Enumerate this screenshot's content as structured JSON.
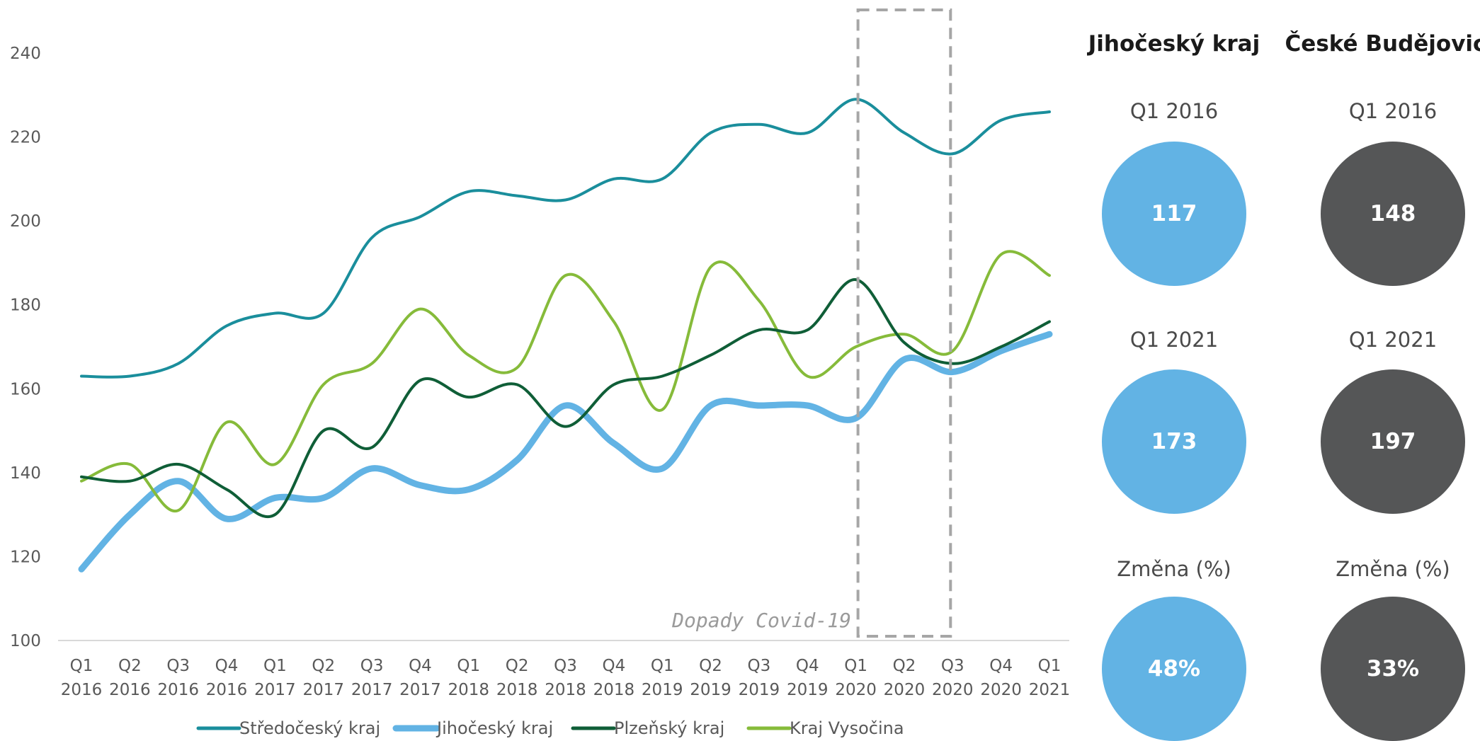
{
  "chart_data": {
    "type": "line",
    "categories": [
      [
        "Q1",
        "2016"
      ],
      [
        "Q2",
        "2016"
      ],
      [
        "Q3",
        "2016"
      ],
      [
        "Q4",
        "2016"
      ],
      [
        "Q1",
        "2017"
      ],
      [
        "Q2",
        "2017"
      ],
      [
        "Q3",
        "2017"
      ],
      [
        "Q4",
        "2017"
      ],
      [
        "Q1",
        "2018"
      ],
      [
        "Q2",
        "2018"
      ],
      [
        "Q3",
        "2018"
      ],
      [
        "Q4",
        "2018"
      ],
      [
        "Q1",
        "2019"
      ],
      [
        "Q2",
        "2019"
      ],
      [
        "Q3",
        "2019"
      ],
      [
        "Q4",
        "2019"
      ],
      [
        "Q1",
        "2020"
      ],
      [
        "Q2",
        "2020"
      ],
      [
        "Q3",
        "2020"
      ],
      [
        "Q4",
        "2020"
      ],
      [
        "Q1",
        "2021"
      ]
    ],
    "ylim": [
      100,
      240
    ],
    "yticks": [
      "100",
      "120",
      "140",
      "160",
      "180",
      "200",
      "220",
      "240"
    ],
    "grid": false,
    "legend_position": "bottom",
    "series": [
      {
        "name": "Středočeský kraj",
        "color": "#1a8e9c",
        "width": 4,
        "values": [
          163,
          163,
          166,
          175,
          178,
          178,
          196,
          201,
          207,
          206,
          205,
          210,
          210,
          221,
          223,
          221,
          229,
          221,
          216,
          224,
          226
        ]
      },
      {
        "name": "Jihočeský kraj",
        "color": "#62b3e4",
        "width": 9,
        "values": [
          117,
          130,
          138,
          129,
          134,
          134,
          141,
          137,
          136,
          143,
          156,
          147,
          141,
          156,
          156,
          156,
          153,
          167,
          164,
          169,
          173
        ]
      },
      {
        "name": "Plzeňský kraj",
        "color": "#0f5e37",
        "width": 4,
        "values": [
          139,
          138,
          142,
          136,
          130,
          150,
          146,
          162,
          158,
          161,
          151,
          161,
          163,
          168,
          174,
          174,
          186,
          171,
          166,
          170,
          176
        ]
      },
      {
        "name": "Kraj Vysočina",
        "color": "#86bb3a",
        "width": 4,
        "values": [
          138,
          142,
          131,
          152,
          142,
          161,
          166,
          179,
          168,
          165,
          187,
          176,
          155,
          189,
          181,
          163,
          170,
          173,
          169,
          192,
          187
        ]
      }
    ],
    "annotations": [
      {
        "text": "Dopady Covid-19",
        "from_category": 16,
        "to_category": 18
      }
    ]
  },
  "panel": {
    "columns": [
      {
        "title": "Jihočeský kraj",
        "color": "#62b3e4",
        "stats": [
          {
            "label": "Q1 2016",
            "value": "117"
          },
          {
            "label": "Q1 2021",
            "value": "173"
          },
          {
            "label": "Změna (%)",
            "value": "48%"
          }
        ]
      },
      {
        "title": "České Budějovice",
        "color": "#555657",
        "stats": [
          {
            "label": "Q1 2016",
            "value": "148"
          },
          {
            "label": "Q1 2021",
            "value": "197"
          },
          {
            "label": "Změna (%)",
            "value": "33%"
          }
        ]
      }
    ]
  }
}
